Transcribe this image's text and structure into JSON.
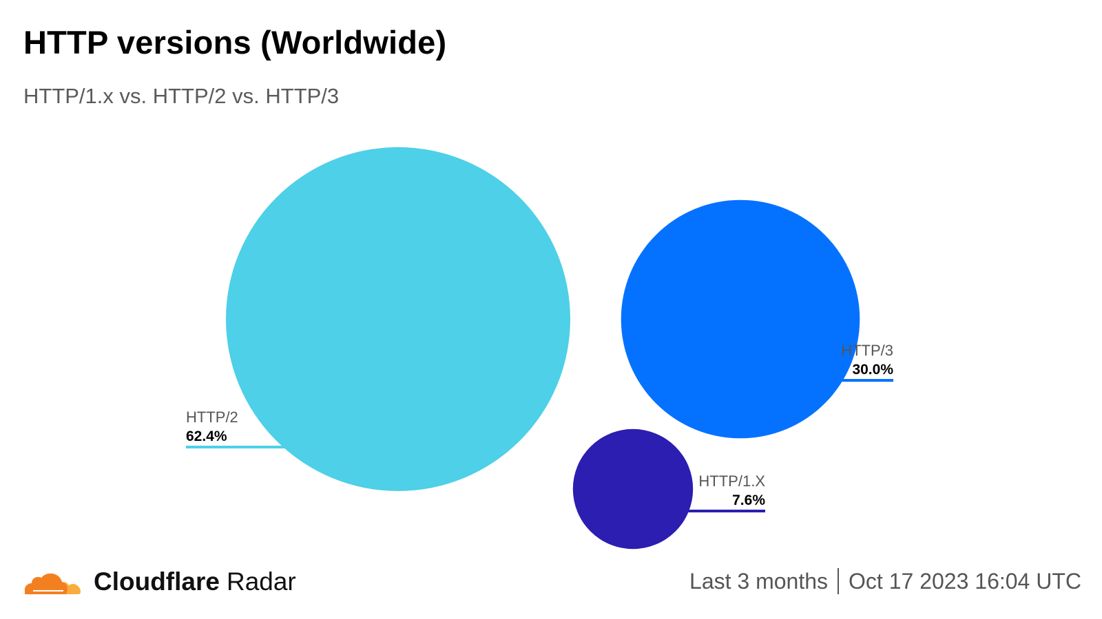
{
  "title": "HTTP versions (Worldwide)",
  "subtitle": "HTTP/1.x vs. HTTP/2 vs. HTTP/3",
  "chart_data": {
    "type": "bubble",
    "unit": "%",
    "series": [
      {
        "name": "HTTP/2",
        "value": 62.4,
        "value_label": "62.4%",
        "color": "#4dd0e8"
      },
      {
        "name": "HTTP/3",
        "value": 30.0,
        "value_label": "30.0%",
        "color": "#0572ff"
      },
      {
        "name": "HTTP/1.X",
        "value": 7.6,
        "value_label": "7.6%",
        "color": "#2c1eb0"
      }
    ]
  },
  "footer": {
    "brand_name": "Cloudflare",
    "brand_product": "Radar",
    "time_range": "Last 3 months",
    "timestamp": "Oct 17 2023 16:04 UTC",
    "logo_color": "#f38020",
    "logo_color_light": "#faad3f"
  }
}
